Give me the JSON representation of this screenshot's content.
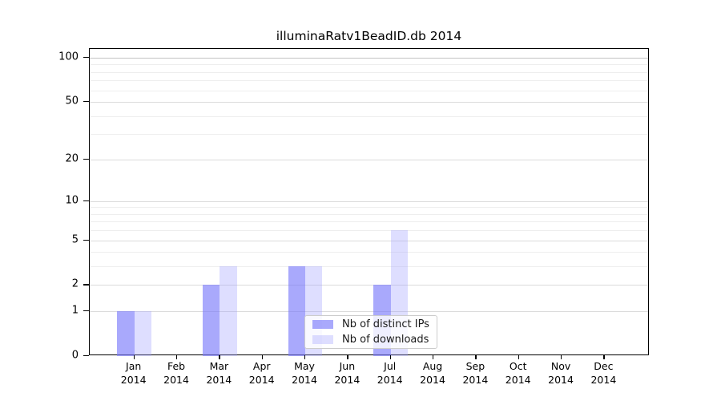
{
  "title": "illuminaRatv1BeadID.db 2014",
  "chart_data": {
    "type": "bar",
    "title": "illuminaRatv1BeadID.db 2014",
    "xlabel": "",
    "ylabel": "",
    "categories": [
      "Jan 2014",
      "Feb 2014",
      "Mar 2014",
      "Apr 2014",
      "May 2014",
      "Jun 2014",
      "Jul 2014",
      "Aug 2014",
      "Sep 2014",
      "Oct 2014",
      "Nov 2014",
      "Dec 2014"
    ],
    "series": [
      {
        "name": "Nb of distinct IPs",
        "color": "rgba(120,120,250,0.64)",
        "approx_hex": "#ababf7",
        "values": [
          1,
          0,
          2,
          0,
          3,
          0,
          2,
          0,
          0,
          0,
          0,
          0
        ]
      },
      {
        "name": "Nb of downloads",
        "color": "rgba(160,160,255,0.35)",
        "approx_hex": "#dcdcf7",
        "values": [
          1,
          0,
          3,
          0,
          3,
          0,
          6,
          0,
          0,
          0,
          0,
          0
        ]
      }
    ],
    "y_scale": "log10(1+x)",
    "y_ticks": [
      0,
      1,
      2,
      5,
      10,
      20,
      50,
      100
    ],
    "y_minor_gridlines": [
      3,
      4,
      6,
      7,
      8,
      9,
      30,
      40,
      60,
      70,
      80,
      90
    ],
    "ylim": [
      0,
      115
    ],
    "grid": true,
    "legend_position": "lower center",
    "gridline_colors": {
      "top_line": "#c4c4c4",
      "major": "#dbdbdb",
      "minor": "#eeeeee"
    }
  },
  "legend": {
    "items": [
      {
        "label": "Nb of distinct IPs"
      },
      {
        "label": "Nb of downloads"
      }
    ]
  }
}
